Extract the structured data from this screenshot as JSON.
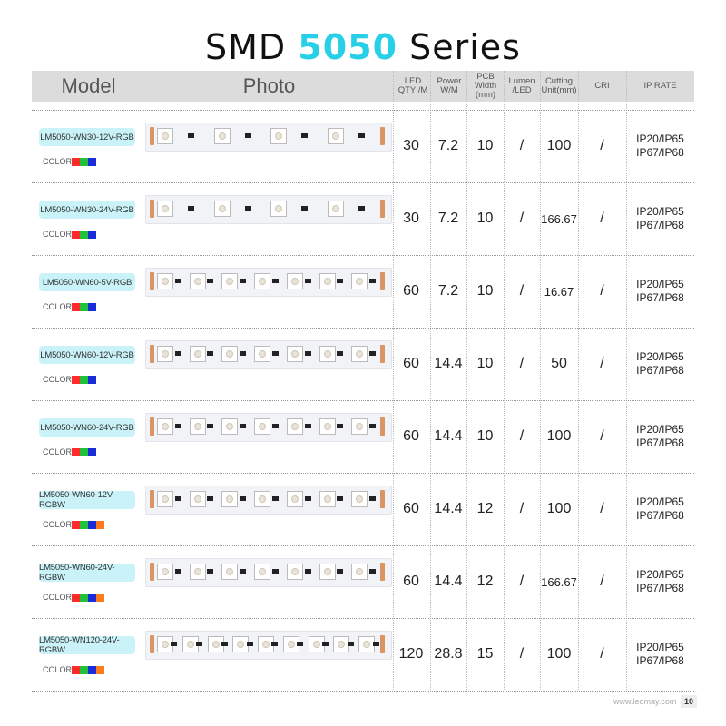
{
  "title": {
    "prefix": "SMD",
    "highlight": "5050",
    "suffix": "Series"
  },
  "headers": {
    "model": "Model",
    "photo": "Photo",
    "led_qty": "LED QTY /M",
    "power": "Power W/M",
    "pcb_width": "PCB Width (mm)",
    "lumen": "Lumen /LED",
    "cutting": "Cutting Unit(mm)",
    "cri": "CRI",
    "ip_rate": "IP RATE"
  },
  "color_label": "COLOR",
  "colors": {
    "red": "#ff2b2b",
    "green": "#22c13a",
    "blue": "#1a2bd8",
    "orange": "#ff7a1a",
    "accent": "#27d0e6",
    "model_bg": "#c9f3f8"
  },
  "rows": [
    {
      "model": "LM5050-WN30-12V-RGB",
      "colors": [
        "red",
        "green",
        "blue"
      ],
      "led_qty": "30",
      "power": "7.2",
      "pcb_width": "10",
      "lumen": "/",
      "cutting": "100",
      "cri": "/",
      "ip1": "IP20/IP65",
      "ip2": "IP67/IP68"
    },
    {
      "model": "LM5050-WN30-24V-RGB",
      "colors": [
        "red",
        "green",
        "blue"
      ],
      "led_qty": "30",
      "power": "7.2",
      "pcb_width": "10",
      "lumen": "/",
      "cutting": "166.67",
      "cri": "/",
      "ip1": "IP20/IP65",
      "ip2": "IP67/IP68"
    },
    {
      "model": "LM5050-WN60-5V-RGB",
      "colors": [
        "red",
        "green",
        "blue"
      ],
      "led_qty": "60",
      "power": "7.2",
      "pcb_width": "10",
      "lumen": "/",
      "cutting": "16.67",
      "cri": "/",
      "ip1": "IP20/IP65",
      "ip2": "IP67/IP68"
    },
    {
      "model": "LM5050-WN60-12V-RGB",
      "colors": [
        "red",
        "green",
        "blue"
      ],
      "led_qty": "60",
      "power": "14.4",
      "pcb_width": "10",
      "lumen": "/",
      "cutting": "50",
      "cri": "/",
      "ip1": "IP20/IP65",
      "ip2": "IP67/IP68"
    },
    {
      "model": "LM5050-WN60-24V-RGB",
      "colors": [
        "red",
        "green",
        "blue"
      ],
      "led_qty": "60",
      "power": "14.4",
      "pcb_width": "10",
      "lumen": "/",
      "cutting": "100",
      "cri": "/",
      "ip1": "IP20/IP65",
      "ip2": "IP67/IP68"
    },
    {
      "model": "LM5050-WN60-12V-RGBW",
      "colors": [
        "red",
        "green",
        "blue",
        "orange"
      ],
      "led_qty": "60",
      "power": "14.4",
      "pcb_width": "12",
      "lumen": "/",
      "cutting": "100",
      "cri": "/",
      "ip1": "IP20/IP65",
      "ip2": "IP67/IP68"
    },
    {
      "model": "LM5050-WN60-24V-RGBW",
      "colors": [
        "red",
        "green",
        "blue",
        "orange"
      ],
      "led_qty": "60",
      "power": "14.4",
      "pcb_width": "12",
      "lumen": "/",
      "cutting": "166.67",
      "cri": "/",
      "ip1": "IP20/IP65",
      "ip2": "IP67/IP68"
    },
    {
      "model": "LM5050-WN120-24V-RGBW",
      "colors": [
        "red",
        "green",
        "blue",
        "orange"
      ],
      "led_qty": "120",
      "power": "28.8",
      "pcb_width": "15",
      "lumen": "/",
      "cutting": "100",
      "cri": "/",
      "ip1": "IP20/IP65",
      "ip2": "IP67/IP68"
    }
  ],
  "footer": {
    "site": "www.leomay.com",
    "page": "10"
  }
}
